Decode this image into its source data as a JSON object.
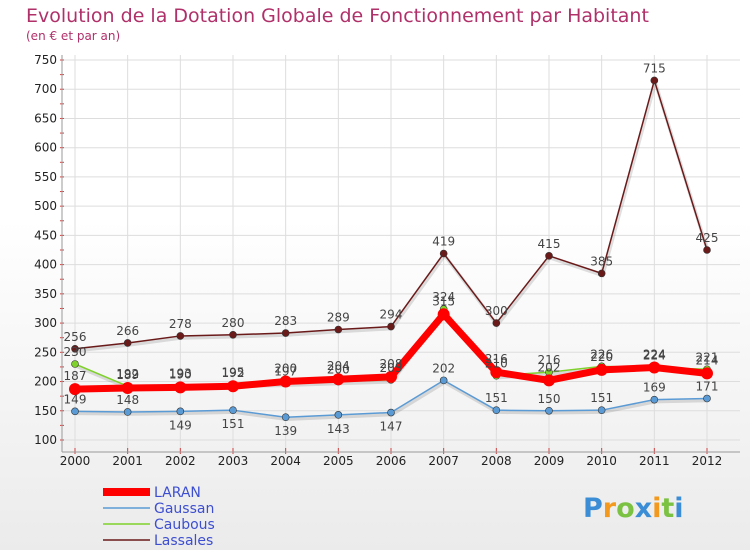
{
  "chart_data": {
    "type": "line",
    "title": "Evolution de la Dotation Globale de Fonctionnement par Habitant",
    "subtitle": "(en € et par an)",
    "xlabel": "",
    "ylabel": "",
    "ylim": [
      100,
      750
    ],
    "yticks": [
      100,
      150,
      200,
      250,
      300,
      350,
      400,
      450,
      500,
      550,
      600,
      650,
      700,
      750
    ],
    "categories": [
      "2000",
      "2001",
      "2002",
      "2003",
      "2004",
      "2005",
      "2006",
      "2007",
      "2008",
      "2009",
      "2010",
      "2011",
      "2012"
    ],
    "grid": true,
    "legend_position": "bottom-left",
    "series": [
      {
        "name": "Lassales",
        "color": "#6b1a1a",
        "values": [
          256,
          266,
          278,
          280,
          283,
          289,
          294,
          419,
          300,
          415,
          385,
          715,
          425
        ],
        "labels": [
          "256",
          "266",
          "278",
          "280",
          "283",
          "289",
          "294",
          "419",
          "300",
          "415",
          "385",
          "715",
          "425"
        ]
      },
      {
        "name": "Gaussan",
        "color": "#5b9bd5",
        "values": [
          149,
          148,
          149,
          151,
          139,
          143,
          147,
          202,
          151,
          150,
          151,
          169,
          171
        ],
        "labels": [
          "149",
          "148",
          "149",
          "151",
          "139",
          "143",
          "147",
          "202",
          "151",
          "150",
          "151",
          "169",
          "171"
        ]
      },
      {
        "name": "Caubous",
        "color": "#7fd12b",
        "values": [
          230,
          192,
          193,
          195,
          197,
          200,
          203,
          324,
          210,
          216,
          226,
          224,
          221
        ],
        "labels": [
          "230",
          "192",
          "193",
          "195",
          "197",
          "200",
          "203",
          "324",
          "210",
          "216",
          "226",
          "224",
          "221"
        ]
      },
      {
        "name": "LARAN",
        "color": "#ff0000",
        "values": [
          187,
          189,
          190,
          192,
          200,
          204,
          208,
          315,
          216,
          202,
          220,
          224,
          214
        ],
        "labels": [
          "187",
          "189",
          "190",
          "192",
          "200",
          "204",
          "208",
          "315",
          "216",
          "202",
          "220",
          "224",
          "214"
        ]
      }
    ],
    "legend": [
      "LARAN",
      "Gaussan",
      "Caubous",
      "Lassales"
    ]
  },
  "logo": {
    "text": "Proxiti"
  }
}
